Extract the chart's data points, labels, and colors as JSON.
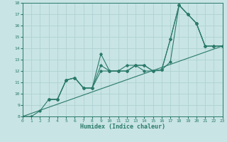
{
  "xlabel": "Humidex (Indice chaleur)",
  "bg_color": "#c8e4e4",
  "grid_color": "#aacfcf",
  "line_color": "#2a7a6a",
  "xlim": [
    0,
    23
  ],
  "ylim": [
    8,
    18
  ],
  "xticks": [
    0,
    1,
    2,
    3,
    4,
    5,
    6,
    7,
    8,
    9,
    10,
    11,
    12,
    13,
    14,
    15,
    16,
    17,
    18,
    19,
    20,
    21,
    22,
    23
  ],
  "yticks": [
    8,
    9,
    10,
    11,
    12,
    13,
    14,
    15,
    16,
    17,
    18
  ],
  "series": [
    {
      "x": [
        0,
        1,
        2,
        3,
        4,
        5,
        6,
        7,
        8,
        9,
        10,
        11,
        12,
        13,
        14,
        15,
        16,
        17,
        18,
        19,
        20,
        21,
        22,
        23
      ],
      "y": [
        8,
        8,
        8.5,
        9.5,
        9.5,
        11.2,
        11.4,
        10.5,
        10.5,
        12.0,
        12.0,
        12.0,
        12.5,
        12.5,
        12.0,
        12.0,
        12.1,
        12.8,
        17.8,
        17.0,
        16.2,
        14.2,
        14.2,
        14.2
      ],
      "marker": true
    },
    {
      "x": [
        3,
        4,
        5,
        6,
        7,
        8,
        9,
        10,
        11,
        12,
        13,
        14,
        15,
        16,
        17,
        18,
        19,
        20,
        21,
        22,
        23
      ],
      "y": [
        9.5,
        9.5,
        11.2,
        11.4,
        10.5,
        10.5,
        13.5,
        12.0,
        12.0,
        12.0,
        12.5,
        12.5,
        12.0,
        12.1,
        14.8,
        17.8,
        17.0,
        16.2,
        14.2,
        14.2,
        14.2
      ],
      "marker": true
    },
    {
      "x": [
        3,
        4,
        5,
        6,
        7,
        8,
        9,
        10,
        11,
        12,
        13,
        14,
        15,
        16,
        17,
        18,
        19,
        20,
        21,
        22,
        23
      ],
      "y": [
        9.5,
        9.5,
        11.2,
        11.4,
        10.5,
        10.5,
        12.5,
        12.0,
        12.0,
        12.0,
        12.5,
        12.5,
        12.0,
        12.1,
        14.8,
        17.8,
        17.0,
        16.2,
        14.2,
        14.2,
        14.2
      ],
      "marker": true
    },
    {
      "x": [
        0,
        23
      ],
      "y": [
        8,
        14.2
      ],
      "marker": false
    }
  ]
}
